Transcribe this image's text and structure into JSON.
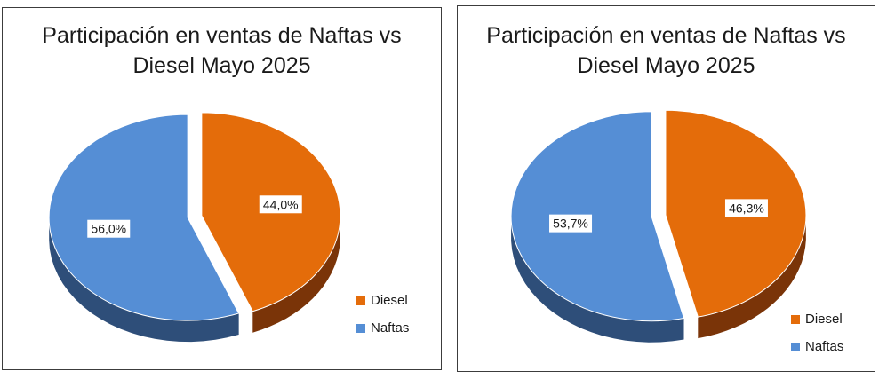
{
  "colors": {
    "diesel": "#E46C0A",
    "diesel_dark": "#7A3408",
    "naftas": "#558ED5",
    "naftas_dark": "#2E4E79",
    "border": "#3c3c3c"
  },
  "chart_data": [
    {
      "type": "pie",
      "title_lines": [
        "Participación en ventas de Naftas vs",
        "Diesel Mayo 2025"
      ],
      "slices": [
        {
          "label": "Diesel",
          "value": 44.0,
          "value_label": "44,0%"
        },
        {
          "label": "Naftas",
          "value": 56.0,
          "value_label": "56,0%"
        }
      ],
      "legend": [
        "Diesel",
        "Naftas"
      ],
      "legend_position": "right-bottom",
      "exploded": true,
      "style": "3d"
    },
    {
      "type": "pie",
      "title_lines": [
        "Participación en ventas de Naftas vs",
        "Diesel Mayo 2025"
      ],
      "slices": [
        {
          "label": "Diesel",
          "value": 46.3,
          "value_label": "46,3%"
        },
        {
          "label": "Naftas",
          "value": 53.7,
          "value_label": "53,7%"
        }
      ],
      "legend": [
        "Diesel",
        "Naftas"
      ],
      "legend_position": "right-bottom",
      "exploded": true,
      "style": "3d"
    }
  ]
}
